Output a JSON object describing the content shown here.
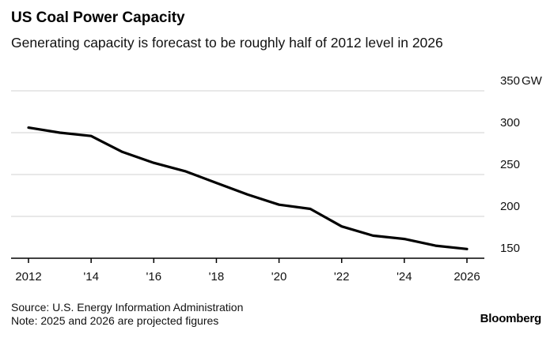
{
  "chart_data": {
    "type": "line",
    "title": "US Coal Power Capacity",
    "subtitle": "Generating capacity is forecast to be roughly half of 2012 level in 2026",
    "x": [
      2012,
      2013,
      2014,
      2015,
      2016,
      2017,
      2018,
      2019,
      2020,
      2021,
      2022,
      2023,
      2024,
      2025,
      2026
    ],
    "series": [
      {
        "name": "US coal power generating capacity",
        "values": [
          306,
          300,
          296,
          277,
          264,
          254,
          240,
          226,
          214,
          209,
          188,
          177,
          173,
          165,
          161
        ]
      }
    ],
    "xlim": [
      2012,
      2026
    ],
    "ylim": [
      150,
      350
    ],
    "yunit": "GW",
    "x_ticks": [
      2012,
      2014,
      2016,
      2018,
      2020,
      2022,
      2024,
      2026
    ],
    "x_tick_labels": [
      "2012",
      "'14",
      "'16",
      "'18",
      "'20",
      "'22",
      "'24",
      "2026"
    ],
    "y_ticks": [
      150,
      200,
      250,
      300,
      350
    ],
    "y_tick_labels": [
      "150",
      "200",
      "250",
      "300",
      "350"
    ],
    "xlabel": "",
    "ylabel": "",
    "grid": true,
    "colors": {
      "line": "#000000",
      "grid": "#d0d0d0",
      "baseline": "#000000"
    }
  },
  "footer": {
    "source": "Source: U.S. Energy Information Administration",
    "note": "Note: 2025 and 2026 are projected figures"
  },
  "brand": "Bloomberg"
}
